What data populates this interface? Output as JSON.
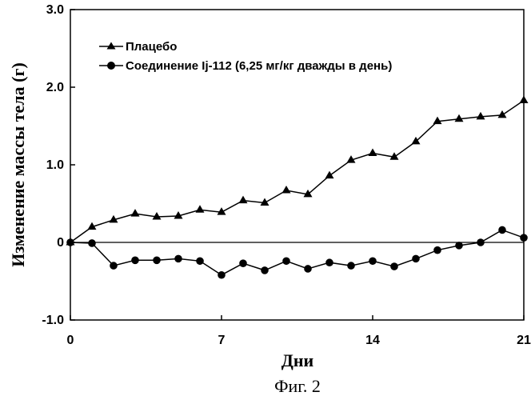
{
  "chart_data": {
    "type": "line",
    "xlabel": "Дни",
    "ylabel": "Изменение массы тела (г)",
    "xlim": [
      0,
      21
    ],
    "ylim": [
      -1.0,
      3.0
    ],
    "x_ticks": [
      "0",
      "7",
      "14",
      "21"
    ],
    "y_ticks": [
      "-1.0",
      "0",
      "1.0",
      "2.0",
      "3.0"
    ],
    "grid": false,
    "legend_position": "top-left",
    "series": [
      {
        "name": "Плацебо",
        "marker": "triangle",
        "x": [
          0,
          1,
          2,
          3,
          4,
          5,
          6,
          7,
          8,
          9,
          10,
          11,
          12,
          13,
          14,
          15,
          16,
          17,
          18,
          19,
          20,
          21
        ],
        "values": [
          0.0,
          0.2,
          0.29,
          0.37,
          0.33,
          0.34,
          0.42,
          0.39,
          0.54,
          0.51,
          0.67,
          0.62,
          0.86,
          1.06,
          1.15,
          1.1,
          1.3,
          1.56,
          1.59,
          1.62,
          1.64,
          1.83
        ]
      },
      {
        "name": "Соединение Ij-112 (6,25 мг/кг дважды в день)",
        "marker": "circle",
        "x": [
          0,
          1,
          2,
          3,
          4,
          5,
          6,
          7,
          8,
          9,
          10,
          11,
          12,
          13,
          14,
          15,
          16,
          17,
          18,
          19,
          20,
          21
        ],
        "values": [
          0.0,
          -0.01,
          -0.3,
          -0.23,
          -0.23,
          -0.21,
          -0.24,
          -0.42,
          -0.27,
          -0.36,
          -0.24,
          -0.34,
          -0.26,
          -0.3,
          -0.24,
          -0.31,
          -0.21,
          -0.1,
          -0.04,
          0.0,
          0.16,
          0.06
        ]
      }
    ]
  },
  "caption": "Фиг. 2",
  "colors": {
    "line": "#000000",
    "background": "#ffffff"
  }
}
